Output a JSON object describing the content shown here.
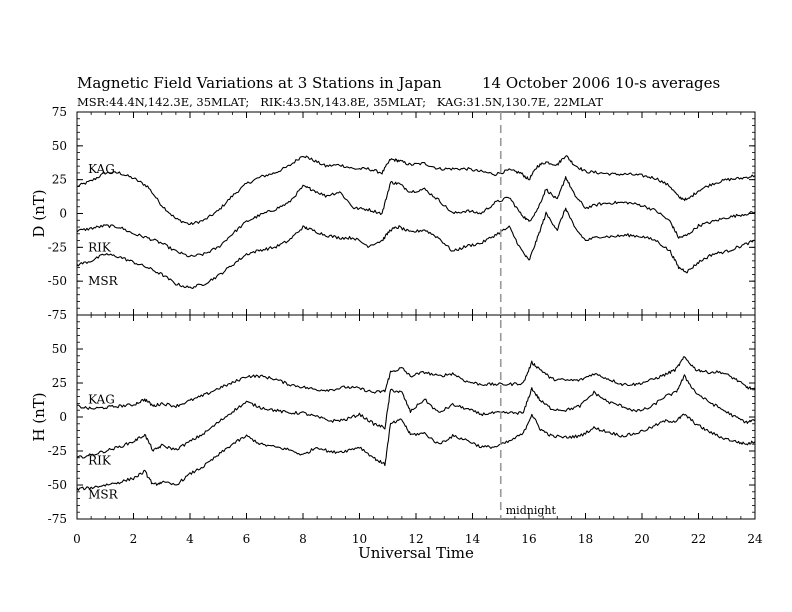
{
  "chart_data": {
    "type": "line",
    "title": "Magnetic Field Variations at 3 Stations in Japan",
    "date": "14 October 2006",
    "averaging": "10-s averages",
    "subtitle": "MSR:44.4N,142.3E, 35MLAT;   RIK:43.5N,143.8E, 35MLAT;   KAG:31.5N,130.7E, 22MLAT",
    "xlabel": "Universal Time",
    "xlim": [
      0,
      24
    ],
    "xticks": [
      "0",
      "2",
      "4",
      "6",
      "8",
      "10",
      "12",
      "14",
      "16",
      "18",
      "20",
      "22",
      "24"
    ],
    "reference_line": {
      "x": 15,
      "label": "midnight"
    },
    "panels": [
      {
        "ylabel": "D (nT)",
        "ylim": [
          -75,
          75
        ],
        "yticks": [
          "75",
          "50",
          "25",
          "0",
          "-25",
          "-50",
          "-75"
        ],
        "x": [
          0,
          0.5,
          1,
          1.5,
          2,
          2.5,
          3,
          3.5,
          4,
          4.5,
          5,
          5.5,
          6,
          6.5,
          7,
          7.5,
          8,
          8.3,
          8.8,
          9.3,
          9.8,
          10.3,
          10.8,
          11.1,
          11.4,
          11.8,
          12.3,
          12.8,
          13.3,
          13.8,
          14.3,
          14.8,
          15.3,
          15.7,
          16.0,
          16.3,
          16.6,
          17.0,
          17.3,
          17.6,
          18.0,
          18.5,
          19,
          19.5,
          20,
          20.5,
          21,
          21.3,
          21.6,
          22,
          22.5,
          23,
          23.5,
          24
        ],
        "series": [
          {
            "name": "KAG",
            "label_at": [
              0.25,
              30
            ],
            "values": [
              20,
              24,
              30,
              30,
              26,
              20,
              6,
              -4,
              -8,
              -5,
              2,
              13,
              22,
              27,
              30,
              35,
              43,
              40,
              35,
              36,
              33,
              33,
              30,
              40,
              39,
              36,
              37,
              33,
              33,
              33,
              31,
              29,
              32,
              30,
              25,
              35,
              38,
              36,
              43,
              36,
              31,
              30,
              29,
              29,
              28,
              26,
              20,
              12,
              10,
              17,
              22,
              25,
              26,
              28
            ]
          },
          {
            "name": "RIK",
            "label_at": [
              0.25,
              -28
            ],
            "values": [
              -13,
              -11,
              -9,
              -10,
              -15,
              -18,
              -22,
              -28,
              -32,
              -30,
              -25,
              -15,
              -6,
              -1,
              3,
              8,
              20,
              18,
              13,
              16,
              4,
              3,
              0,
              23,
              22,
              16,
              18,
              10,
              0,
              2,
              0,
              8,
              12,
              0,
              -6,
              3,
              18,
              10,
              27,
              14,
              4,
              7,
              8,
              8,
              6,
              2,
              -6,
              -18,
              -16,
              -9,
              -6,
              -3,
              -1,
              1
            ]
          },
          {
            "name": "MSR",
            "label_at": [
              0.25,
              -53
            ],
            "values": [
              -38,
              -35,
              -30,
              -32,
              -36,
              -40,
              -45,
              -52,
              -55,
              -52,
              -46,
              -38,
              -30,
              -27,
              -25,
              -20,
              -10,
              -12,
              -16,
              -18,
              -18,
              -24,
              -20,
              -12,
              -10,
              -14,
              -12,
              -18,
              -28,
              -24,
              -22,
              -16,
              -10,
              -26,
              -35,
              -18,
              0,
              -12,
              4,
              -10,
              -20,
              -17,
              -17,
              -16,
              -17,
              -20,
              -28,
              -40,
              -43,
              -36,
              -30,
              -28,
              -24,
              -20
            ]
          }
        ]
      },
      {
        "ylabel": "H (nT)",
        "ylim": [
          -75,
          75
        ],
        "yticks": [
          "50",
          "25",
          "0",
          "-25",
          "-50",
          "-75"
        ],
        "x": [
          0,
          0.5,
          1,
          1.5,
          2,
          2.4,
          2.7,
          3,
          3.5,
          4,
          4.5,
          5,
          5.5,
          6,
          6.5,
          7,
          7.5,
          8,
          8.5,
          9,
          9.5,
          10,
          10.5,
          10.9,
          11.1,
          11.5,
          11.8,
          12.3,
          12.8,
          13.3,
          13.8,
          14.3,
          14.8,
          15.3,
          15.8,
          16.1,
          16.4,
          16.8,
          17.3,
          17.8,
          18.3,
          18.8,
          19.3,
          19.8,
          20.3,
          20.8,
          21.2,
          21.5,
          21.9,
          22.3,
          22.8,
          23.3,
          23.7,
          24
        ],
        "series": [
          {
            "name": "KAG",
            "label_at": [
              0.25,
              10
            ],
            "values": [
              8,
              6,
              7,
              8,
              9,
              13,
              8,
              10,
              8,
              12,
              16,
              21,
              25,
              30,
              30,
              28,
              24,
              22,
              20,
              20,
              22,
              21,
              18,
              19,
              33,
              36,
              30,
              33,
              30,
              32,
              26,
              24,
              24,
              24,
              25,
              40,
              35,
              28,
              27,
              27,
              32,
              28,
              24,
              24,
              27,
              31,
              35,
              44,
              35,
              33,
              33,
              28,
              22,
              20
            ]
          },
          {
            "name": "RIK",
            "label_at": [
              0.25,
              -35
            ],
            "values": [
              -30,
              -28,
              -25,
              -22,
              -18,
              -13,
              -25,
              -21,
              -24,
              -18,
              -12,
              -4,
              4,
              11,
              7,
              5,
              3,
              3,
              0,
              -3,
              -2,
              2,
              -5,
              -8,
              20,
              18,
              4,
              13,
              3,
              9,
              6,
              2,
              3,
              3,
              3,
              21,
              12,
              6,
              5,
              8,
              18,
              11,
              8,
              4,
              7,
              15,
              18,
              30,
              18,
              12,
              6,
              0,
              -4,
              -2
            ]
          },
          {
            "name": "MSR",
            "label_at": [
              0.25,
              -60
            ],
            "values": [
              -53,
              -52,
              -50,
              -48,
              -45,
              -40,
              -50,
              -48,
              -50,
              -42,
              -36,
              -28,
              -20,
              -14,
              -20,
              -22,
              -24,
              -28,
              -22,
              -26,
              -25,
              -22,
              -30,
              -35,
              -5,
              -2,
              -13,
              -12,
              -20,
              -14,
              -17,
              -22,
              -22,
              -18,
              -12,
              2,
              -9,
              -14,
              -15,
              -14,
              -8,
              -11,
              -14,
              -12,
              -8,
              -3,
              -3,
              2,
              -5,
              -10,
              -15,
              -18,
              -20,
              -18
            ]
          }
        ]
      }
    ]
  }
}
